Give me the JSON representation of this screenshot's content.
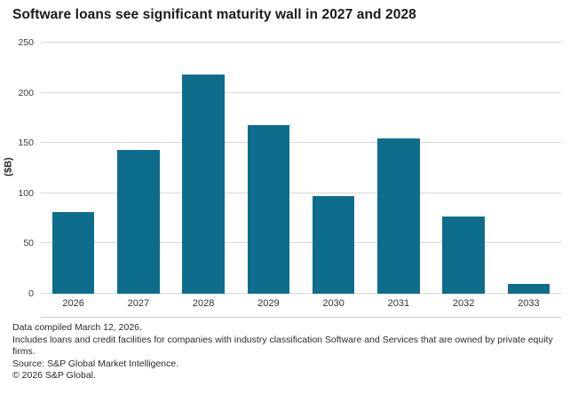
{
  "title": "Software loans see significant maturity wall in 2027 and 2028",
  "chart_data": {
    "type": "bar",
    "categories": [
      "2026",
      "2027",
      "2028",
      "2029",
      "2030",
      "2031",
      "2032",
      "2033"
    ],
    "values": [
      81,
      143,
      218,
      168,
      97,
      155,
      77,
      10
    ],
    "title": "Software loans see significant maturity wall in 2027 and 2028",
    "xlabel": "",
    "ylabel": "($B)",
    "yticks": [
      0,
      50,
      100,
      150,
      200,
      250
    ],
    "ylim": [
      0,
      250
    ],
    "grid": "horizontal",
    "legend": "none",
    "bar_color": "#0e6d8c"
  },
  "footnotes": [
    "Data compiled March 12, 2026.",
    "Includes loans and credit facilities for companies with industry classification Software and Services that are owned by private equity firms.",
    "Source: S&P Global Market Intelligence.",
    "© 2026 S&P Global."
  ]
}
